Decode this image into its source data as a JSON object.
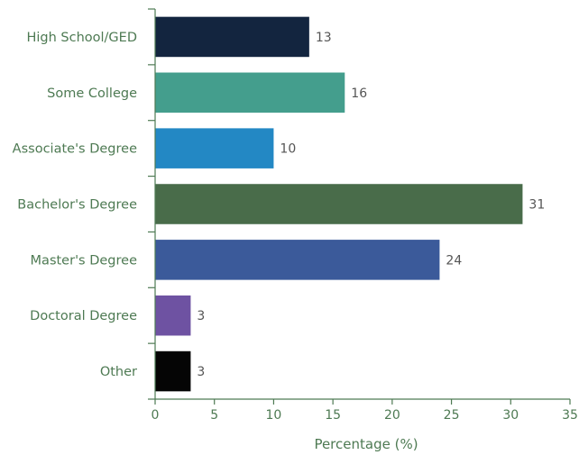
{
  "chart_data": {
    "type": "bar",
    "orientation": "horizontal",
    "categories": [
      "High School/GED",
      "Some College",
      "Associate's Degree",
      "Bachelor's Degree",
      "Master's Degree",
      "Doctoral Degree",
      "Other"
    ],
    "values": [
      13,
      16,
      10,
      31,
      24,
      3,
      3
    ],
    "colors": [
      "#13253f",
      "#449e8d",
      "#2388c4",
      "#496c4a",
      "#3b5a9a",
      "#6e52a2",
      "#050505"
    ],
    "xlabel": "Percentage (%)",
    "ylabel": "",
    "xlim": [
      0,
      35
    ],
    "xticks": [
      0,
      5,
      10,
      15,
      20,
      25,
      30,
      35
    ],
    "grid": false,
    "show_value_labels": true
  },
  "colors": {
    "axis": "#4e7a53",
    "label_text": "#4e7a53",
    "value_text": "#555555"
  }
}
